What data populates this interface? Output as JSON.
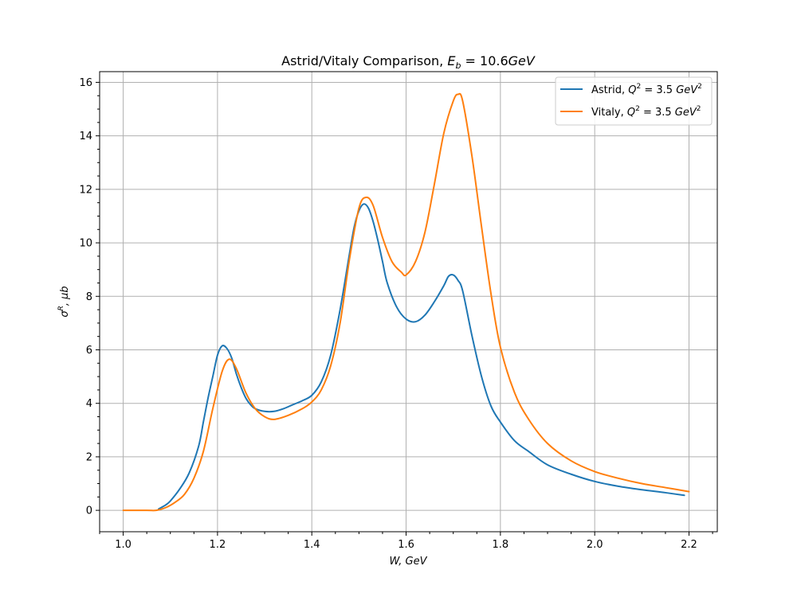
{
  "chart_data": {
    "type": "line",
    "title": "Astrid/Vitaly Comparison, E_b = 10.6GeV",
    "title_parts": {
      "prefix": "Astrid/Vitaly Comparison, ",
      "symbol": "E",
      "subscript": "b",
      "suffix": " = 10.6",
      "unit": "GeV"
    },
    "xlabel": "W, GeV",
    "ylabel": "σ^R, μb",
    "ylabel_parts": {
      "sym": "σ",
      "sup": "R",
      "rest": ", μb"
    },
    "xlim": [
      0.95,
      2.26
    ],
    "ylim": [
      -0.8,
      16.4
    ],
    "xticks": [
      1.0,
      1.2,
      1.4,
      1.6,
      1.8,
      2.0,
      2.2
    ],
    "xtick_labels": [
      "1.0",
      "1.2",
      "1.4",
      "1.6",
      "1.8",
      "2.0",
      "2.2"
    ],
    "yticks": [
      0,
      2,
      4,
      6,
      8,
      10,
      12,
      14,
      16
    ],
    "ytick_labels": [
      "0",
      "2",
      "4",
      "6",
      "8",
      "10",
      "12",
      "14",
      "16"
    ],
    "grid": true,
    "legend_position": "top-right",
    "series": [
      {
        "name": "Astrid, Q² = 3.5 GeV²",
        "legend_parts": {
          "prefix": "Astrid, ",
          "sym": "Q",
          "sup": "2",
          "mid": " = 3.5 ",
          "unit": "GeV",
          "unit_sup": "2"
        },
        "color": "#1f77b4",
        "x": [
          1.075,
          1.09,
          1.1,
          1.12,
          1.14,
          1.16,
          1.17,
          1.18,
          1.19,
          1.2,
          1.21,
          1.22,
          1.23,
          1.24,
          1.25,
          1.26,
          1.27,
          1.28,
          1.3,
          1.32,
          1.34,
          1.36,
          1.38,
          1.4,
          1.42,
          1.44,
          1.46,
          1.48,
          1.49,
          1.5,
          1.51,
          1.52,
          1.53,
          1.54,
          1.55,
          1.56,
          1.58,
          1.6,
          1.62,
          1.64,
          1.66,
          1.68,
          1.69,
          1.7,
          1.71,
          1.72,
          1.74,
          1.76,
          1.78,
          1.8,
          1.83,
          1.86,
          1.9,
          1.95,
          2.0,
          2.05,
          2.1,
          2.15,
          2.19
        ],
        "y": [
          0.05,
          0.2,
          0.35,
          0.8,
          1.4,
          2.4,
          3.3,
          4.2,
          5.0,
          5.8,
          6.15,
          6.05,
          5.7,
          5.1,
          4.6,
          4.2,
          3.95,
          3.8,
          3.7,
          3.7,
          3.8,
          3.95,
          4.1,
          4.3,
          4.8,
          5.8,
          7.5,
          9.6,
          10.6,
          11.2,
          11.45,
          11.3,
          10.8,
          10.1,
          9.3,
          8.5,
          7.6,
          7.15,
          7.05,
          7.3,
          7.8,
          8.4,
          8.75,
          8.8,
          8.6,
          8.2,
          6.5,
          5.0,
          3.9,
          3.3,
          2.6,
          2.2,
          1.7,
          1.35,
          1.08,
          0.9,
          0.77,
          0.66,
          0.56
        ]
      },
      {
        "name": "Vitaly, Q² = 3.5 GeV²",
        "legend_parts": {
          "prefix": "Vitaly, ",
          "sym": "Q",
          "sup": "2",
          "mid": " = 3.5 ",
          "unit": "GeV",
          "unit_sup": "2"
        },
        "color": "#ff7f0e",
        "x": [
          1.0,
          1.05,
          1.07,
          1.09,
          1.11,
          1.13,
          1.15,
          1.17,
          1.19,
          1.21,
          1.225,
          1.24,
          1.26,
          1.28,
          1.3,
          1.32,
          1.35,
          1.38,
          1.4,
          1.42,
          1.44,
          1.46,
          1.48,
          1.5,
          1.515,
          1.53,
          1.55,
          1.57,
          1.59,
          1.6,
          1.62,
          1.64,
          1.66,
          1.68,
          1.7,
          1.71,
          1.72,
          1.74,
          1.76,
          1.78,
          1.8,
          1.83,
          1.86,
          1.9,
          1.95,
          2.0,
          2.05,
          2.1,
          2.15,
          2.2
        ],
        "y": [
          0.0,
          0.0,
          0.0,
          0.1,
          0.3,
          0.6,
          1.2,
          2.2,
          3.8,
          5.2,
          5.65,
          5.3,
          4.4,
          3.8,
          3.5,
          3.4,
          3.55,
          3.8,
          4.05,
          4.5,
          5.4,
          7.0,
          9.4,
          11.3,
          11.7,
          11.4,
          10.2,
          9.3,
          8.9,
          8.8,
          9.3,
          10.4,
          12.2,
          14.1,
          15.3,
          15.55,
          15.3,
          13.2,
          10.6,
          8.1,
          6.1,
          4.4,
          3.4,
          2.5,
          1.85,
          1.45,
          1.2,
          1.0,
          0.85,
          0.7
        ]
      }
    ]
  }
}
